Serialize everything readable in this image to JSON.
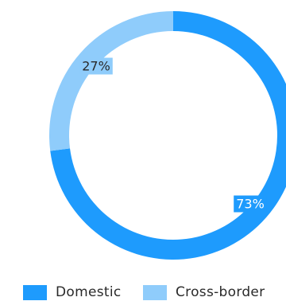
{
  "chart_data": {
    "type": "pie",
    "variant": "donut",
    "categories": [
      "Domestic",
      "Cross-border"
    ],
    "values": [
      73,
      27
    ],
    "data_labels": [
      "73%",
      "27%"
    ],
    "colors": [
      "#1e9bfd",
      "#8fccfb"
    ],
    "legend": {
      "placement": "bottom",
      "entries": [
        "Domestic",
        "Cross-border"
      ]
    }
  }
}
